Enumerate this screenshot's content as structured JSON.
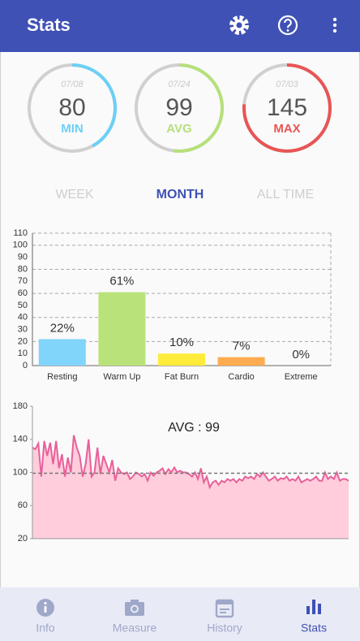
{
  "header": {
    "title": "Stats"
  },
  "summary": [
    {
      "date": "07/08",
      "value": 80,
      "label": "MIN",
      "color": "#6ccff6"
    },
    {
      "date": "07/24",
      "value": 99,
      "label": "AVG",
      "color": "#b6e07a"
    },
    {
      "date": "07/03",
      "value": 145,
      "label": "MAX",
      "color": "#e85555"
    }
  ],
  "tabs": [
    "WEEK",
    "MONTH",
    "ALL TIME"
  ],
  "active_tab": 1,
  "zones_chart": {
    "type": "bar",
    "categories": [
      "Resting",
      "Warm Up",
      "Fat Burn",
      "Cardio",
      "Extreme"
    ],
    "values": [
      22,
      61,
      10,
      7,
      0
    ],
    "value_labels": [
      "22%",
      "61%",
      "10%",
      "7%",
      "0%"
    ],
    "colors": [
      "#81d4fa",
      "#b9e37a",
      "#ffeb3b",
      "#ffab4f",
      "#f06292"
    ],
    "ylim": [
      0,
      110
    ],
    "yticks": [
      0,
      10,
      20,
      30,
      40,
      50,
      60,
      70,
      80,
      90,
      100,
      110
    ]
  },
  "hr_chart": {
    "type": "area",
    "annotation": "AVG : 99",
    "average": 99,
    "values": [
      130,
      128,
      135,
      95,
      138,
      120,
      136,
      110,
      138,
      105,
      122,
      95,
      118,
      100,
      145,
      130,
      120,
      95,
      110,
      140,
      95,
      100,
      130,
      98,
      120,
      110,
      100,
      115,
      90,
      105,
      100,
      98,
      100,
      92,
      95,
      100,
      98,
      95,
      98,
      90,
      100,
      96,
      100,
      102,
      105,
      98,
      104,
      100,
      106,
      100,
      102,
      100,
      100,
      98,
      95,
      100,
      92,
      105,
      88,
      95,
      82,
      88,
      90,
      85,
      90,
      88,
      92,
      90,
      92,
      88,
      92,
      90,
      95,
      93,
      95,
      92,
      98,
      95,
      100,
      95,
      90,
      92,
      95,
      90,
      93,
      92,
      95,
      90,
      92,
      90,
      95,
      88,
      90,
      92,
      90,
      92,
      95,
      90,
      90,
      100,
      92,
      95,
      92,
      100,
      90,
      92,
      92,
      90
    ],
    "line_color": "#e8609a",
    "fill_color": "#ffcddb",
    "ylim": [
      20,
      180
    ],
    "yticks": [
      20,
      60,
      100,
      140,
      180
    ]
  },
  "nav": [
    "Info",
    "Measure",
    "History",
    "Stats"
  ],
  "active_nav": 3
}
